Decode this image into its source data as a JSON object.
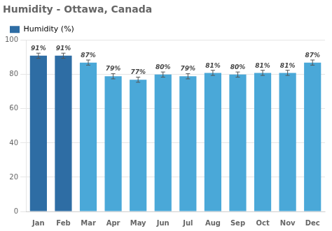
{
  "chart_data": {
    "type": "bar",
    "title": "Humidity - Ottawa, Canada",
    "categories": [
      "Jan",
      "Feb",
      "Mar",
      "Apr",
      "May",
      "Jun",
      "Jul",
      "Aug",
      "Sep",
      "Oct",
      "Nov",
      "Dec"
    ],
    "series": [
      {
        "name": "Humidity (%)",
        "color": "#2e6da4",
        "colors": [
          "#2e6da4",
          "#2e6da4",
          "#4aa8d8",
          "#4aa8d8",
          "#4aa8d8",
          "#4aa8d8",
          "#4aa8d8",
          "#4aa8d8",
          "#4aa8d8",
          "#4aa8d8",
          "#4aa8d8",
          "#4aa8d8"
        ],
        "values": [
          91,
          91,
          87,
          79,
          77,
          80,
          79,
          81,
          80,
          81,
          81,
          87
        ],
        "errors": [
          1.5,
          1.5,
          1.5,
          1.5,
          1.5,
          1.5,
          1.5,
          1.5,
          1.5,
          1.5,
          1.5,
          1.5
        ],
        "value_labels": [
          "91%",
          "91%",
          "87%",
          "79%",
          "77%",
          "80%",
          "79%",
          "81%",
          "80%",
          "81%",
          "81%",
          "87%"
        ]
      }
    ],
    "ylim": [
      0,
      100
    ],
    "yticks": [
      0,
      20,
      40,
      60,
      80,
      100
    ],
    "grid": true,
    "legend": "upper left",
    "data_labels": true
  }
}
